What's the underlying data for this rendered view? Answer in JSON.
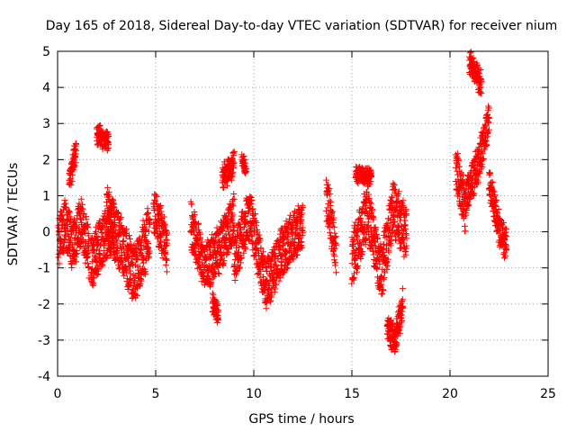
{
  "chart_data": {
    "type": "scatter",
    "title": "Day 165 of 2018, Sidereal Day-to-day VTEC variation (SDTVAR) for receiver nium",
    "xlabel": "GPS time / hours",
    "ylabel": "SDTVAR / TECUs",
    "xlim": [
      0,
      25
    ],
    "ylim": [
      -4,
      5
    ],
    "xticks": [
      "0",
      "5",
      "10",
      "15",
      "20",
      "25"
    ],
    "yticks": [
      "-4",
      "-3",
      "-2",
      "-1",
      "0",
      "1",
      "2",
      "3",
      "4",
      "5"
    ],
    "grid": true,
    "marker": "+",
    "series": [
      {
        "name": "SDTVAR",
        "color": "#ff0000",
        "segments": [
          {
            "t0": 0.05,
            "t1": 1.6,
            "center": [
              [
                0,
                -0.3
              ],
              [
                0.4,
                0.2
              ],
              [
                0.8,
                -0.4
              ],
              [
                1.2,
                0.3
              ],
              [
                1.6,
                -0.6
              ]
            ],
            "spread": 1.0
          },
          {
            "t0": 0.6,
            "t1": 0.95,
            "center": [
              [
                0.6,
                1.4
              ],
              [
                0.95,
                2.3
              ]
            ],
            "spread": 0.3
          },
          {
            "t0": 1.7,
            "t1": 2.9,
            "center": [
              [
                1.7,
                -0.9
              ],
              [
                2.3,
                -0.2
              ],
              [
                2.9,
                0.2
              ]
            ],
            "spread": 1.1
          },
          {
            "t0": 2.0,
            "t1": 2.6,
            "center": [
              [
                2.0,
                2.7
              ],
              [
                2.6,
                2.5
              ]
            ],
            "spread": 0.3
          },
          {
            "t0": 2.5,
            "t1": 4.7,
            "center": [
              [
                2.5,
                0.5
              ],
              [
                3.2,
                -0.3
              ],
              [
                3.9,
                -1.2
              ],
              [
                4.7,
                0.0
              ]
            ],
            "spread": 1.2
          },
          {
            "t0": 4.9,
            "t1": 5.6,
            "center": [
              [
                4.9,
                0.6
              ],
              [
                5.6,
                -0.5
              ]
            ],
            "spread": 0.9
          },
          {
            "t0": 6.8,
            "t1": 9.0,
            "center": [
              [
                6.8,
                0.2
              ],
              [
                7.5,
                -1.0
              ],
              [
                8.2,
                -0.5
              ],
              [
                9.0,
                0.4
              ]
            ],
            "spread": 1.0
          },
          {
            "t0": 7.9,
            "t1": 8.2,
            "center": [
              [
                7.9,
                -2.0
              ],
              [
                8.2,
                -2.3
              ]
            ],
            "spread": 0.3
          },
          {
            "t0": 8.4,
            "t1": 9.0,
            "center": [
              [
                8.4,
                1.5
              ],
              [
                9.0,
                1.9
              ]
            ],
            "spread": 0.4
          },
          {
            "t0": 9.0,
            "t1": 12.5,
            "center": [
              [
                9.0,
                -0.8
              ],
              [
                9.8,
                0.5
              ],
              [
                10.6,
                -1.5
              ],
              [
                11.4,
                -0.6
              ],
              [
                12.5,
                0.2
              ]
            ],
            "spread": 1.0
          },
          {
            "t0": 9.4,
            "t1": 9.6,
            "center": [
              [
                9.4,
                2.0
              ],
              [
                9.6,
                1.7
              ]
            ],
            "spread": 0.2
          },
          {
            "t0": 13.7,
            "t1": 14.2,
            "center": [
              [
                13.7,
                1.0
              ],
              [
                14.2,
                -0.6
              ]
            ],
            "spread": 0.9
          },
          {
            "t0": 15.0,
            "t1": 17.8,
            "center": [
              [
                15.0,
                -0.8
              ],
              [
                15.8,
                0.6
              ],
              [
                16.5,
                -1.2
              ],
              [
                17.1,
                0.7
              ],
              [
                17.8,
                -0.1
              ]
            ],
            "spread": 1.1
          },
          {
            "t0": 15.2,
            "t1": 16.0,
            "center": [
              [
                15.2,
                1.6
              ],
              [
                16.0,
                1.5
              ]
            ],
            "spread": 0.15
          },
          {
            "t0": 16.8,
            "t1": 17.6,
            "center": [
              [
                16.8,
                -2.6
              ],
              [
                17.2,
                -3.0
              ],
              [
                17.6,
                -2.0
              ]
            ],
            "spread": 0.5
          },
          {
            "t0": 20.3,
            "t1": 20.8,
            "center": [
              [
                20.3,
                1.8
              ],
              [
                20.8,
                0.6
              ]
            ],
            "spread": 0.9
          },
          {
            "t0": 20.8,
            "t1": 22.0,
            "center": [
              [
                20.8,
                0.9
              ],
              [
                21.5,
                2.0
              ],
              [
                22.0,
                3.2
              ]
            ],
            "spread": 0.7
          },
          {
            "t0": 21.0,
            "t1": 21.6,
            "center": [
              [
                21.0,
                4.7
              ],
              [
                21.6,
                4.1
              ]
            ],
            "spread": 0.4
          },
          {
            "t0": 22.0,
            "t1": 22.9,
            "center": [
              [
                22.0,
                1.4
              ],
              [
                22.5,
                0.1
              ],
              [
                22.9,
                -0.4
              ]
            ],
            "spread": 0.6
          }
        ]
      }
    ]
  }
}
